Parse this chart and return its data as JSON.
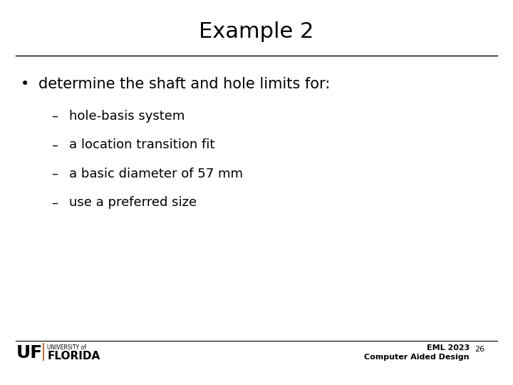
{
  "title": "Example 2",
  "bullet_text": "determine the shaft and hole limits for:",
  "sub_bullets": [
    "hole-basis system",
    "a location transition fit",
    "a basic diameter of 57 mm",
    "use a preferred size"
  ],
  "footer_right_line1": "EML 2023",
  "footer_right_line2": "Computer Aided Design",
  "page_number": "26",
  "bg_color": "#ffffff",
  "text_color": "#000000",
  "title_fontsize": 22,
  "bullet_fontsize": 15,
  "sub_bullet_fontsize": 13,
  "footer_fontsize": 8,
  "line_color": "#000000",
  "uf_color": "#c07030"
}
